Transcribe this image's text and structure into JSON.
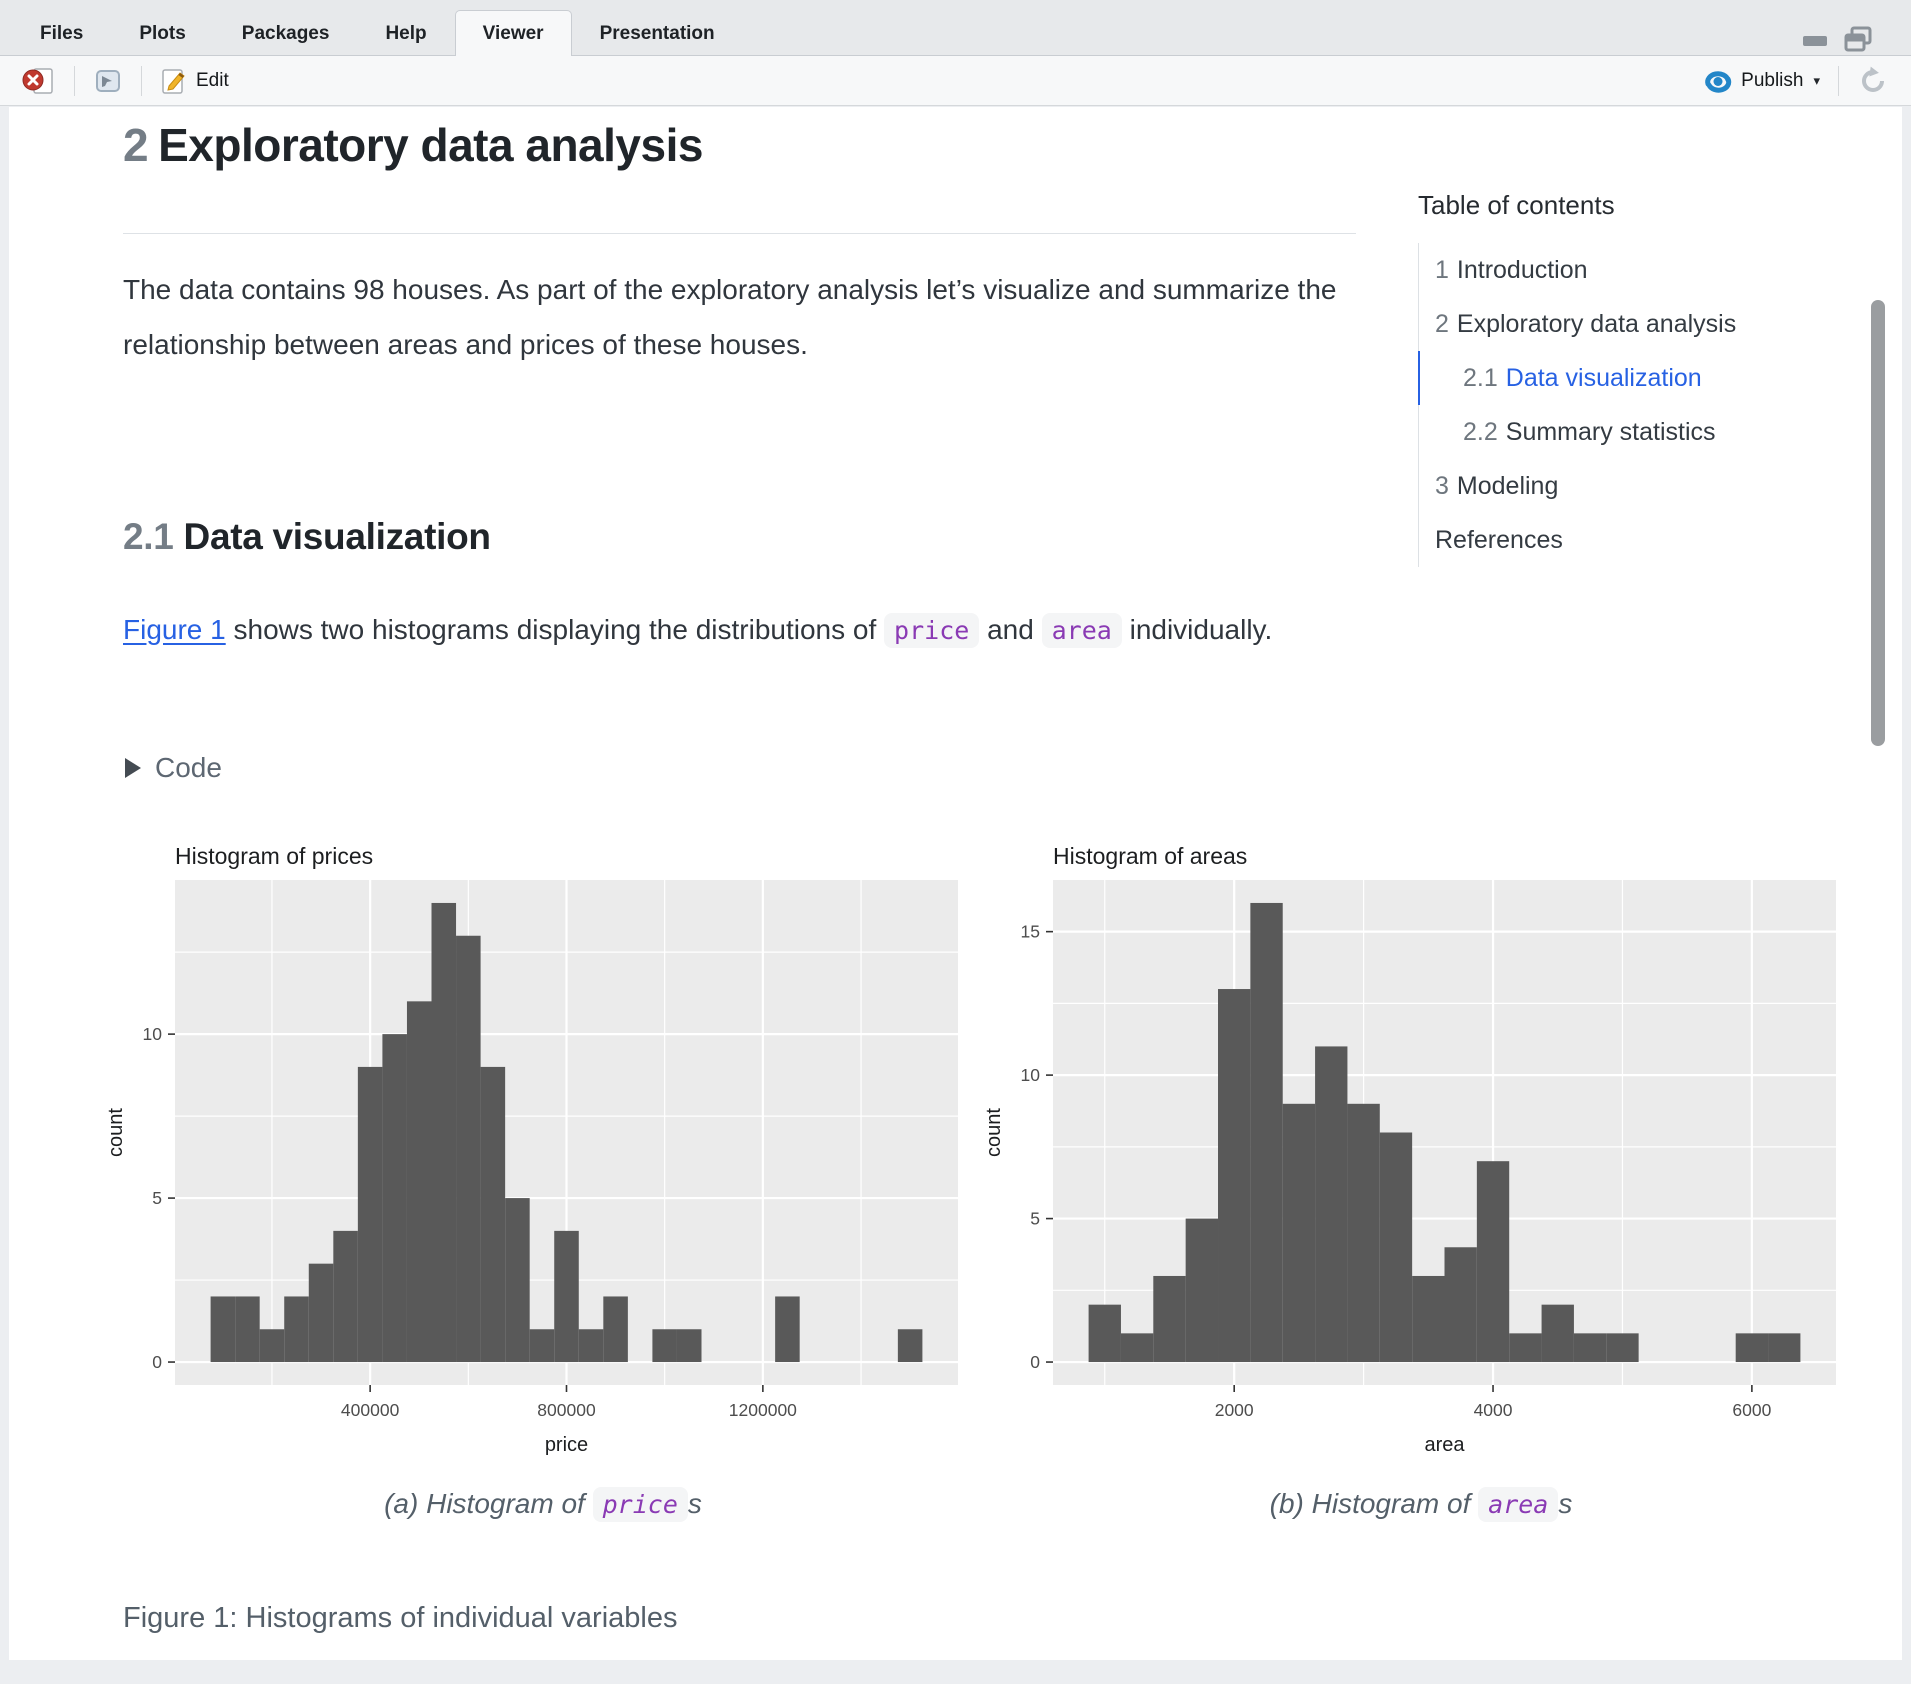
{
  "tabs": {
    "items": [
      {
        "label": "Files"
      },
      {
        "label": "Plots"
      },
      {
        "label": "Packages"
      },
      {
        "label": "Help"
      },
      {
        "label": "Viewer"
      },
      {
        "label": "Presentation"
      }
    ],
    "active_index": 4
  },
  "toolbar": {
    "edit_label": "Edit",
    "publish_label": "Publish"
  },
  "doc": {
    "h1_number": "2",
    "h1_title": "Exploratory data analysis",
    "p1": "The data contains 98 houses. As part of the exploratory analysis let’s visualize and summarize the relationship between areas and prices of these houses.",
    "h2_number": "2.1",
    "h2_title": "Data visualization",
    "p2_link": "Figure 1",
    "p2_a": " shows two histograms displaying the distributions of ",
    "p2_code1": "price",
    "p2_b": " and ",
    "p2_code2": "area",
    "p2_c": " individually.",
    "code_toggle_label": "Code",
    "caption_a_prefix": "(a) Histogram of ",
    "caption_a_code": "price",
    "caption_a_suffix": "s",
    "caption_b_prefix": "(b) Histogram of ",
    "caption_b_code": "area",
    "caption_b_suffix": "s",
    "figure_caption": "Figure 1: Histograms of individual variables"
  },
  "toc": {
    "title": "Table of contents",
    "items": [
      {
        "number": "1",
        "label": "Introduction",
        "level": 1,
        "active": false
      },
      {
        "number": "2",
        "label": "Exploratory data analysis",
        "level": 1,
        "active": false
      },
      {
        "number": "2.1",
        "label": "Data visualization",
        "level": 2,
        "active": true
      },
      {
        "number": "2.2",
        "label": "Summary statistics",
        "level": 2,
        "active": false
      },
      {
        "number": "3",
        "label": "Modeling",
        "level": 1,
        "active": false
      },
      {
        "number": "",
        "label": "References",
        "level": 1,
        "active": false
      }
    ]
  },
  "colors": {
    "link_blue": "#2761E3",
    "code_purple": "#8a3ab4",
    "bar_fill": "#595959",
    "panel_bg": "#EBEBEB",
    "axis_text": "#4d4d4d",
    "plot_text": "#1c1e20"
  },
  "chart_data": [
    {
      "type": "bar",
      "subtype": "histogram",
      "title": "Histogram of prices",
      "xlabel": "price",
      "ylabel": "count",
      "bin_start": 75000,
      "bin_width": 50000,
      "counts": [
        2,
        2,
        1,
        2,
        3,
        4,
        9,
        10,
        11,
        14,
        13,
        9,
        5,
        1,
        4,
        1,
        2,
        0,
        1,
        1,
        0,
        0,
        0,
        2,
        0,
        0,
        0,
        0,
        1
      ],
      "x_ticks": [
        {
          "value": 400000,
          "label": "400000"
        },
        {
          "value": 800000,
          "label": "800000"
        },
        {
          "value": 1200000,
          "label": "1200000"
        }
      ],
      "y_ticks": [
        {
          "value": 0,
          "label": "0"
        },
        {
          "value": 5,
          "label": "5"
        },
        {
          "value": 10,
          "label": "10"
        }
      ],
      "y_max": 14,
      "total_n": 98,
      "grid": true,
      "legend": false
    },
    {
      "type": "bar",
      "subtype": "histogram",
      "title": "Histogram of areas",
      "xlabel": "area",
      "ylabel": "count",
      "bin_start": 875,
      "bin_width": 250,
      "counts": [
        2,
        1,
        3,
        5,
        13,
        16,
        9,
        11,
        9,
        8,
        3,
        4,
        7,
        1,
        2,
        1,
        1,
        0,
        0,
        0,
        1,
        1
      ],
      "x_ticks": [
        {
          "value": 2000,
          "label": "2000"
        },
        {
          "value": 4000,
          "label": "4000"
        },
        {
          "value": 6000,
          "label": "6000"
        }
      ],
      "y_ticks": [
        {
          "value": 0,
          "label": "0"
        },
        {
          "value": 5,
          "label": "5"
        },
        {
          "value": 10,
          "label": "10"
        },
        {
          "value": 15,
          "label": "15"
        }
      ],
      "y_max": 16,
      "total_n": 98,
      "grid": true,
      "legend": false
    }
  ]
}
